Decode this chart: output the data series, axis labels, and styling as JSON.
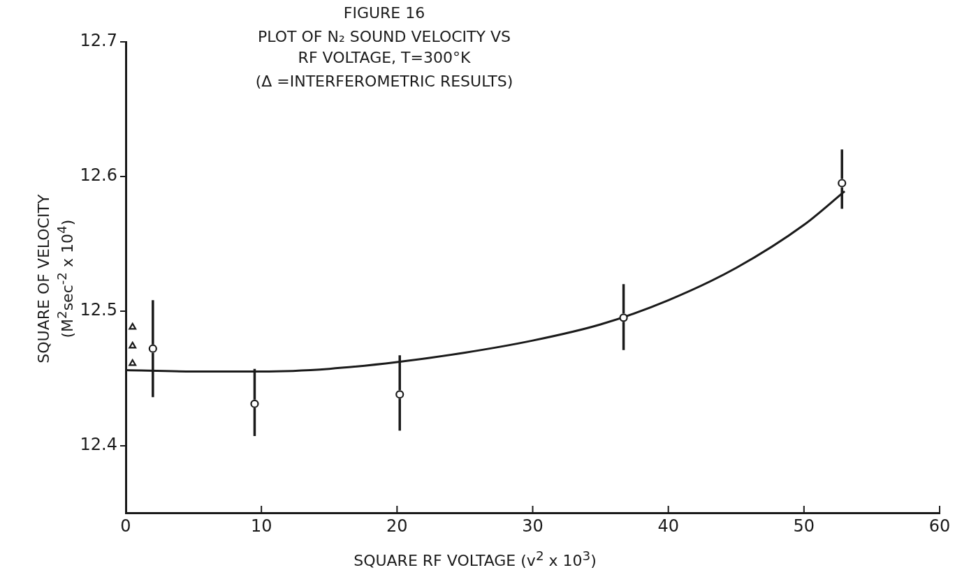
{
  "chart_data": {
    "type": "scatter",
    "title": "FIGURE 16",
    "subtitle": "PLOT OF N₂ SOUND VELOCITY VS RF VOLTAGE, T=300°K",
    "annotations": [
      "(Δ =INTERFEROMETRIC RESULTS)"
    ],
    "xlabel": "SQUARE RF VOLTAGE (v$^{2}$ x 10$^{3}$)",
    "ylabel": "SQUARE OF VELOCITY (M$^{2}$sec$^{-2}$ x 10$^{4}$)",
    "xlim": [
      0,
      60
    ],
    "xticks": [
      0,
      10,
      20,
      30,
      40,
      50,
      60
    ],
    "ylim": [
      12.35,
      12.7
    ],
    "yticks": [
      12.4,
      12.5,
      12.6,
      12.7
    ],
    "grid": false,
    "legend": false,
    "series": [
      {
        "type": "scatter",
        "marker": "circle",
        "color": "#1a1a1a",
        "x": [
          2,
          9.5,
          20.2,
          36.7,
          52.8
        ],
        "values": [
          12.472,
          12.431,
          12.438,
          12.495,
          12.595
        ],
        "errors": [
          [
            12.436,
            12.508
          ],
          [
            12.407,
            12.457
          ],
          [
            12.411,
            12.467
          ],
          [
            12.471,
            12.52
          ],
          [
            12.576,
            12.62
          ]
        ]
      },
      {
        "type": "scatter",
        "marker": "triangle",
        "color": "#1a1a1a",
        "x": [
          0.5,
          0.5,
          0.5
        ],
        "values": [
          12.488,
          12.474,
          12.461
        ]
      },
      {
        "type": "line",
        "marker": "none",
        "line_style": "solid",
        "color": "#1a1a1a",
        "x": [
          0,
          5,
          10,
          15,
          20,
          25,
          30,
          35,
          40,
          45,
          50,
          53
        ],
        "values": [
          12.456,
          12.455,
          12.455,
          12.457,
          12.462,
          12.469,
          12.478,
          12.49,
          12.508,
          12.532,
          12.564,
          12.589
        ]
      }
    ]
  }
}
